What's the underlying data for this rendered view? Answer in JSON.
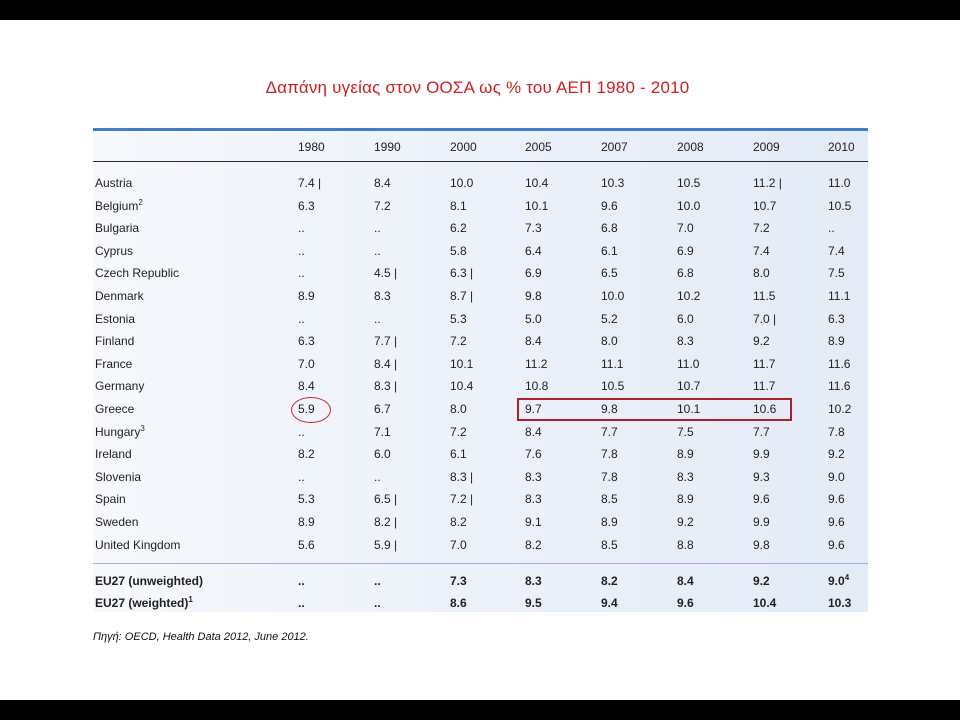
{
  "title": "Δαπάνη υγείας στον ΟΟΣΑ ως % του ΑΕΠ 1980 - 2010",
  "table": {
    "columns": [
      "1980",
      "1990",
      "2000",
      "2005",
      "2007",
      "2008",
      "2009",
      "2010"
    ],
    "rows": [
      {
        "country": "Austria",
        "values": [
          "7.4 |",
          "8.4",
          "10.0",
          "10.4",
          "10.3",
          "10.5",
          "11.2 |",
          "11.0"
        ]
      },
      {
        "country": "Belgium",
        "sup": "2",
        "values": [
          "6.3",
          "7.2",
          "8.1",
          "10.1",
          "9.6",
          "10.0",
          "10.7",
          "10.5"
        ]
      },
      {
        "country": "Bulgaria",
        "values": [
          "..",
          "..",
          "6.2",
          "7.3",
          "6.8",
          "7.0",
          "7.2",
          ".."
        ]
      },
      {
        "country": "Cyprus",
        "values": [
          "..",
          "..",
          "5.8",
          "6.4",
          "6.1",
          "6.9",
          "7.4",
          "7.4"
        ]
      },
      {
        "country": "Czech Republic",
        "values": [
          "..",
          "4.5 |",
          "6.3 |",
          "6.9",
          "6.5",
          "6.8",
          "8.0",
          "7.5"
        ]
      },
      {
        "country": "Denmark",
        "values": [
          "8.9",
          "8.3",
          "8.7 |",
          "9.8",
          "10.0",
          "10.2",
          "11.5",
          "11.1"
        ]
      },
      {
        "country": "Estonia",
        "values": [
          "..",
          "..",
          "5.3",
          "5.0",
          "5.2",
          "6.0",
          "7.0 |",
          "6.3"
        ]
      },
      {
        "country": "Finland",
        "values": [
          "6.3",
          "7.7 |",
          "7.2",
          "8.4",
          "8.0",
          "8.3",
          "9.2",
          "8.9"
        ]
      },
      {
        "country": "France",
        "values": [
          "7.0",
          "8.4 |",
          "10.1",
          "11.2",
          "11.1",
          "11.0",
          "11.7",
          "11.6"
        ]
      },
      {
        "country": "Germany",
        "values": [
          "8.4",
          "8.3 |",
          "10.4",
          "10.8",
          "10.5",
          "10.7",
          "11.7",
          "11.6"
        ]
      },
      {
        "country": "Greece",
        "values": [
          "5.9",
          "6.7",
          "8.0",
          "9.7",
          "9.8",
          "10.1",
          "10.6",
          "10.2"
        ]
      },
      {
        "country": "Hungary",
        "sup": "3",
        "values": [
          "..",
          "7.1",
          "7.2",
          "8.4",
          "7.7",
          "7.5",
          "7.7",
          "7.8"
        ]
      },
      {
        "country": "Ireland",
        "values": [
          "8.2",
          "6.0",
          "6.1",
          "7.6",
          "7.8",
          "8.9",
          "9.9",
          "9.2"
        ]
      },
      {
        "country": "Slovenia",
        "values": [
          "..",
          "..",
          "8.3 |",
          "8.3",
          "7.8",
          "8.3",
          "9.3",
          "9.0"
        ]
      },
      {
        "country": "Spain",
        "values": [
          "5.3",
          "6.5 |",
          "7.2 |",
          "8.3",
          "8.5",
          "8.9",
          "9.6",
          "9.6"
        ]
      },
      {
        "country": "Sweden",
        "values": [
          "8.9",
          "8.2 |",
          "8.2",
          "9.1",
          "8.9",
          "9.2",
          "9.9",
          "9.6"
        ]
      },
      {
        "country": "United Kingdom",
        "values": [
          "5.6",
          "5.9 |",
          "7.0",
          "8.2",
          "8.5",
          "8.8",
          "9.8",
          "9.6"
        ]
      }
    ],
    "summary_rows": [
      {
        "country": "EU27 (unweighted)",
        "values": [
          "..",
          "..",
          "7.3",
          "8.3",
          "8.2",
          "8.4",
          "9.2",
          "9.0"
        ],
        "sup_last": "4"
      },
      {
        "country": "EU27 (weighted)",
        "sup": "1",
        "values": [
          "..",
          "..",
          "8.6",
          "9.5",
          "9.4",
          "9.6",
          "10.4",
          "10.3"
        ]
      }
    ]
  },
  "source": "Πηγή: OECD, Health Data 2012, June 2012.",
  "colors": {
    "title": "#cc1f1f",
    "highlight": "#b01e2a",
    "table_rule": "#3f7fc4"
  }
}
